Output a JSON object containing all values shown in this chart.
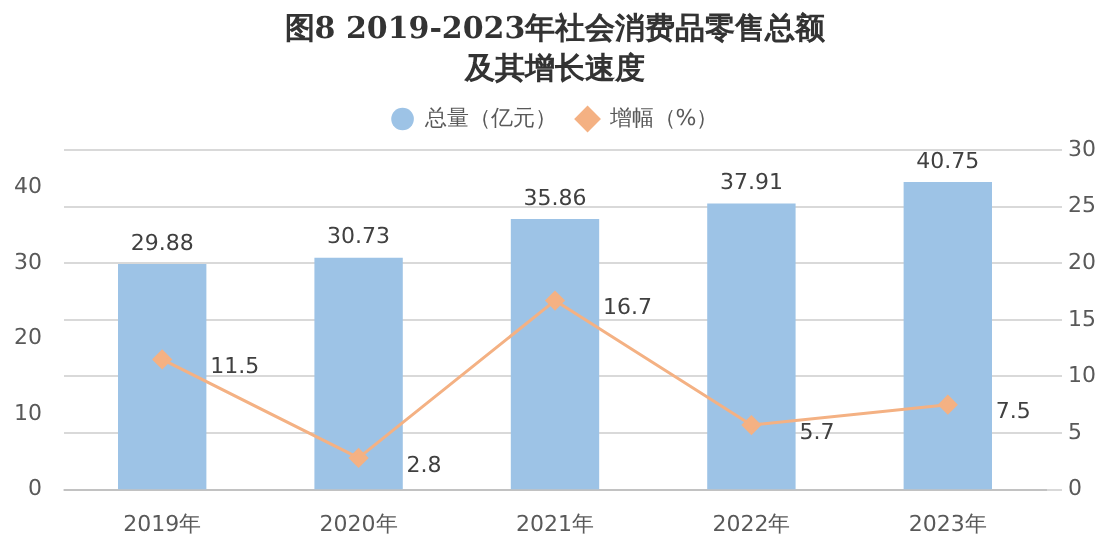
{
  "chart_data": {
    "type": "bar",
    "title": "图8  2019-2023年社会消费品零售总额及其增长速度",
    "categories": [
      "2019年",
      "2020年",
      "2021年",
      "2022年",
      "2023年"
    ],
    "series": [
      {
        "name": "总量（亿元）",
        "color": "#9dc3e6",
        "values": [
          29.88,
          30.73,
          35.86,
          37.91,
          40.75
        ]
      },
      {
        "name": "增幅（%）",
        "type": "line",
        "axis": "y2",
        "color": "#f4b183",
        "marker": "diamond",
        "values": [
          11.5,
          2.8,
          16.7,
          5.7,
          7.5
        ]
      }
    ],
    "ylim": [
      0,
      45
    ],
    "yticks": [
      0,
      10,
      20,
      30,
      40
    ],
    "y2lim": [
      0,
      30
    ],
    "y2ticks": [
      0,
      5,
      10,
      15,
      20,
      25,
      30
    ],
    "grid": "y",
    "legend": "top",
    "data_labels": true
  }
}
